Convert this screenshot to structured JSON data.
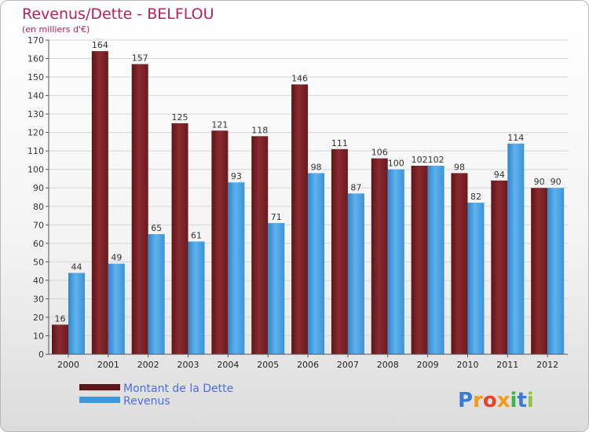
{
  "chart_data": {
    "type": "bar",
    "title": "Revenus/Dette - BELFLOU",
    "subtitle": "(en milliers d'€)",
    "categories": [
      "2000",
      "2001",
      "2002",
      "2003",
      "2004",
      "2005",
      "2006",
      "2007",
      "2008",
      "2009",
      "2010",
      "2011",
      "2012"
    ],
    "series": [
      {
        "name": "Montant de la Dette",
        "color": "#7a1f24",
        "values": [
          16,
          164,
          157,
          125,
          121,
          118,
          146,
          111,
          106,
          102,
          98,
          94,
          90
        ]
      },
      {
        "name": "Revenus",
        "color": "#4aa3e4",
        "values": [
          44,
          49,
          65,
          61,
          93,
          71,
          98,
          87,
          100,
          102,
          82,
          114,
          90
        ]
      }
    ],
    "ylim": [
      0,
      170
    ],
    "ytick_step": 10,
    "grid": true,
    "legend": [
      "Montant de la Dette",
      "Revenus"
    ],
    "logo": "Proxiti",
    "logo_colors": [
      "#3a7bd5",
      "#f29a1d",
      "#e8412c",
      "#f29a1d",
      "#3ab54a",
      "#3a7bd5",
      "#8bc53f"
    ]
  }
}
